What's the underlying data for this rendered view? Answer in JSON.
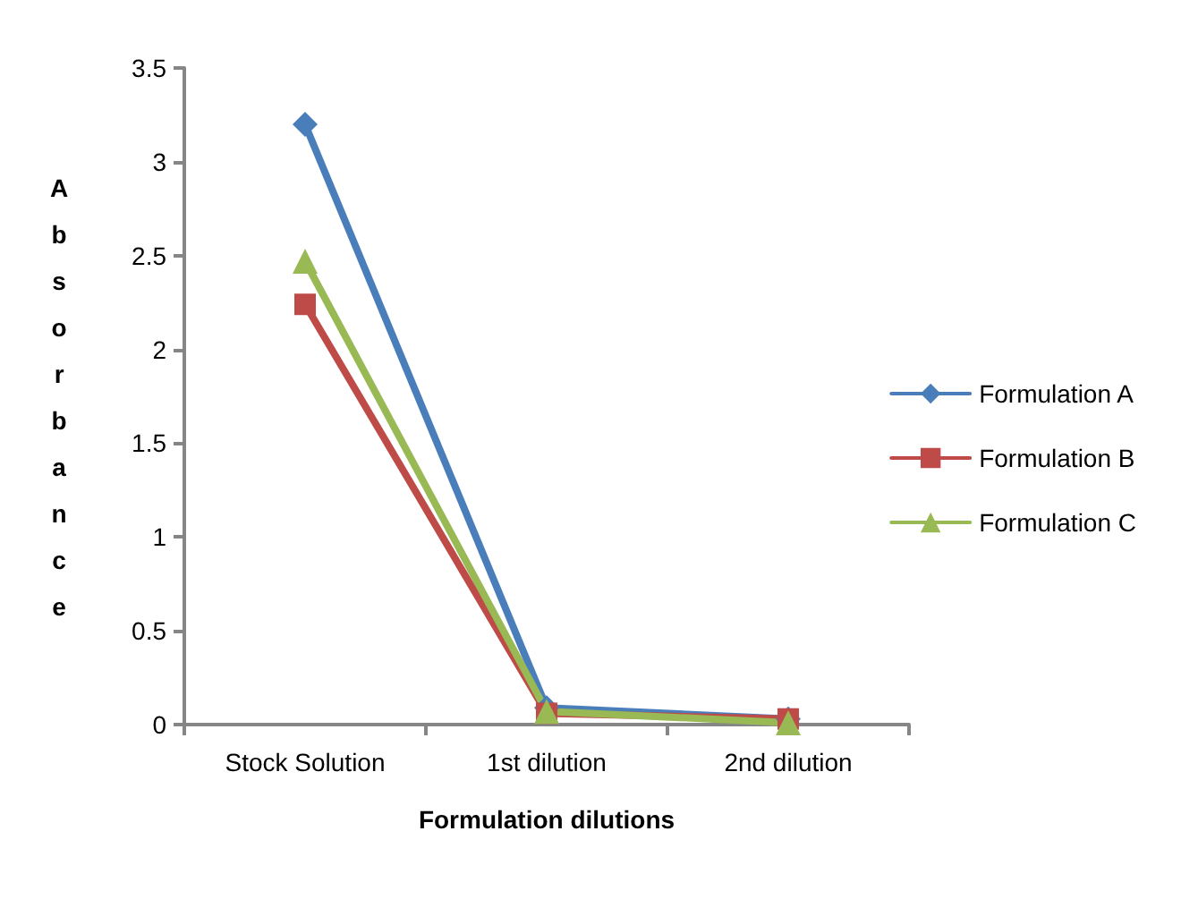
{
  "chart_data": {
    "type": "line",
    "xlabel": "Formulation dilutions",
    "ylabel": "Absorbance",
    "categories": [
      "Stock Solution",
      "1st dilution",
      "2nd dilution"
    ],
    "series": [
      {
        "name": "Formulation A",
        "color": "#4a7ebb",
        "marker": "diamond",
        "values": [
          3.2,
          0.09,
          0.03
        ]
      },
      {
        "name": "Formulation B",
        "color": "#be4b48",
        "marker": "square",
        "values": [
          2.24,
          0.06,
          0.03
        ]
      },
      {
        "name": "Formulation C",
        "color": "#98b954",
        "marker": "triangle",
        "values": [
          2.47,
          0.07,
          0.01
        ]
      }
    ],
    "ylim": [
      0,
      3.5
    ],
    "yticks": [
      0,
      0.5,
      1,
      1.5,
      2,
      2.5,
      3,
      3.5
    ],
    "grid": false,
    "legend": "right",
    "line_style": "solid"
  }
}
